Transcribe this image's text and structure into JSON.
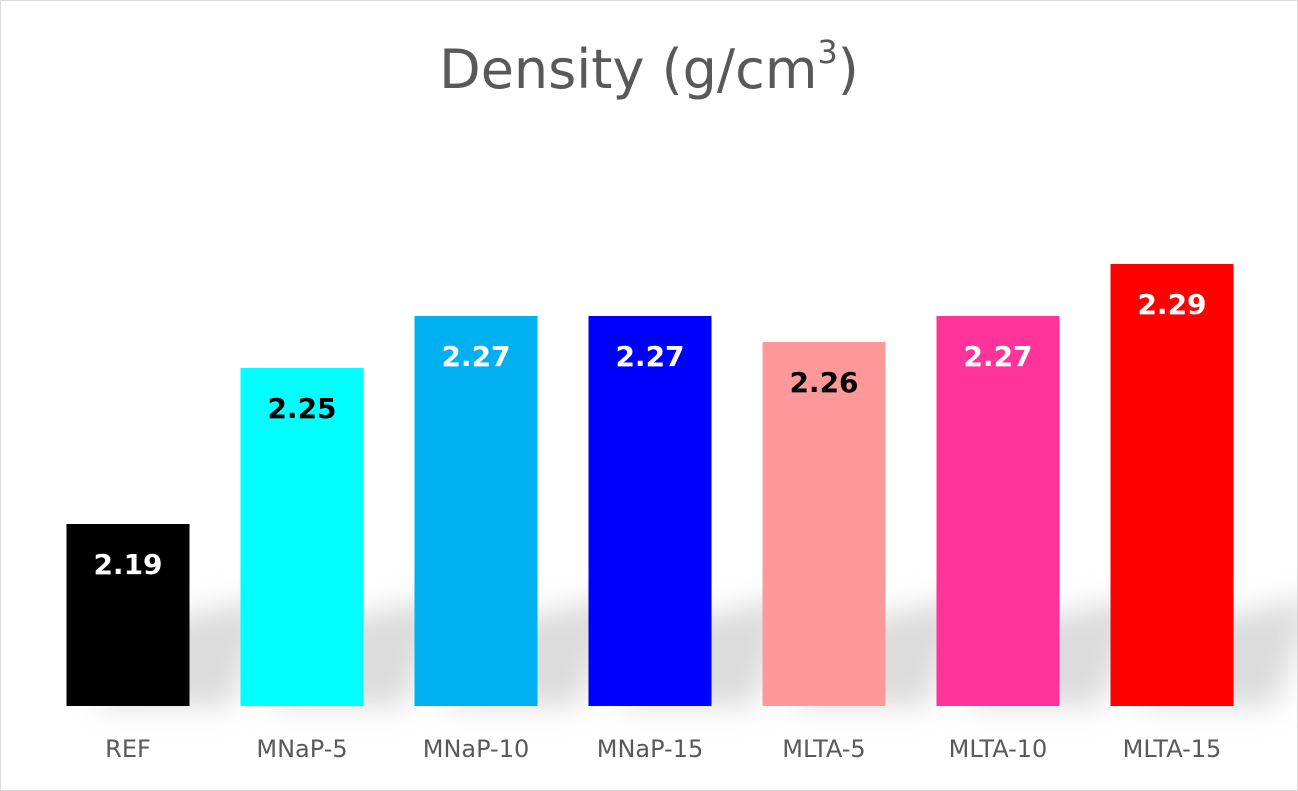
{
  "chart_data": {
    "type": "bar",
    "title": "Density (g/cm",
    "title_superscript": "3",
    "title_close": ")",
    "xlabel": "",
    "ylabel": "",
    "ylim": [
      2.12,
      2.3
    ],
    "grid": false,
    "legend": "none",
    "categories": [
      "REF",
      "MNaP-5",
      "MNaP-10",
      "MNaP-15",
      "MLTA-5",
      "MLTA-10",
      "MLTA-15"
    ],
    "values": [
      2.19,
      2.25,
      2.27,
      2.27,
      2.26,
      2.27,
      2.29
    ],
    "data_labels": [
      "2.19",
      "2.25",
      "2.27",
      "2.27",
      "2.26",
      "2.27",
      "2.29"
    ],
    "bar_colors": [
      "#000000",
      "#00FFFF",
      "#00B0F0",
      "#0000FF",
      "#FF9999",
      "#FF3399",
      "#FF0000"
    ],
    "label_colors": [
      "#FFFFFF",
      "#000000",
      "#FFFFFF",
      "#FFFFFF",
      "#000000",
      "#FFFFFF",
      "#FFFFFF"
    ]
  }
}
